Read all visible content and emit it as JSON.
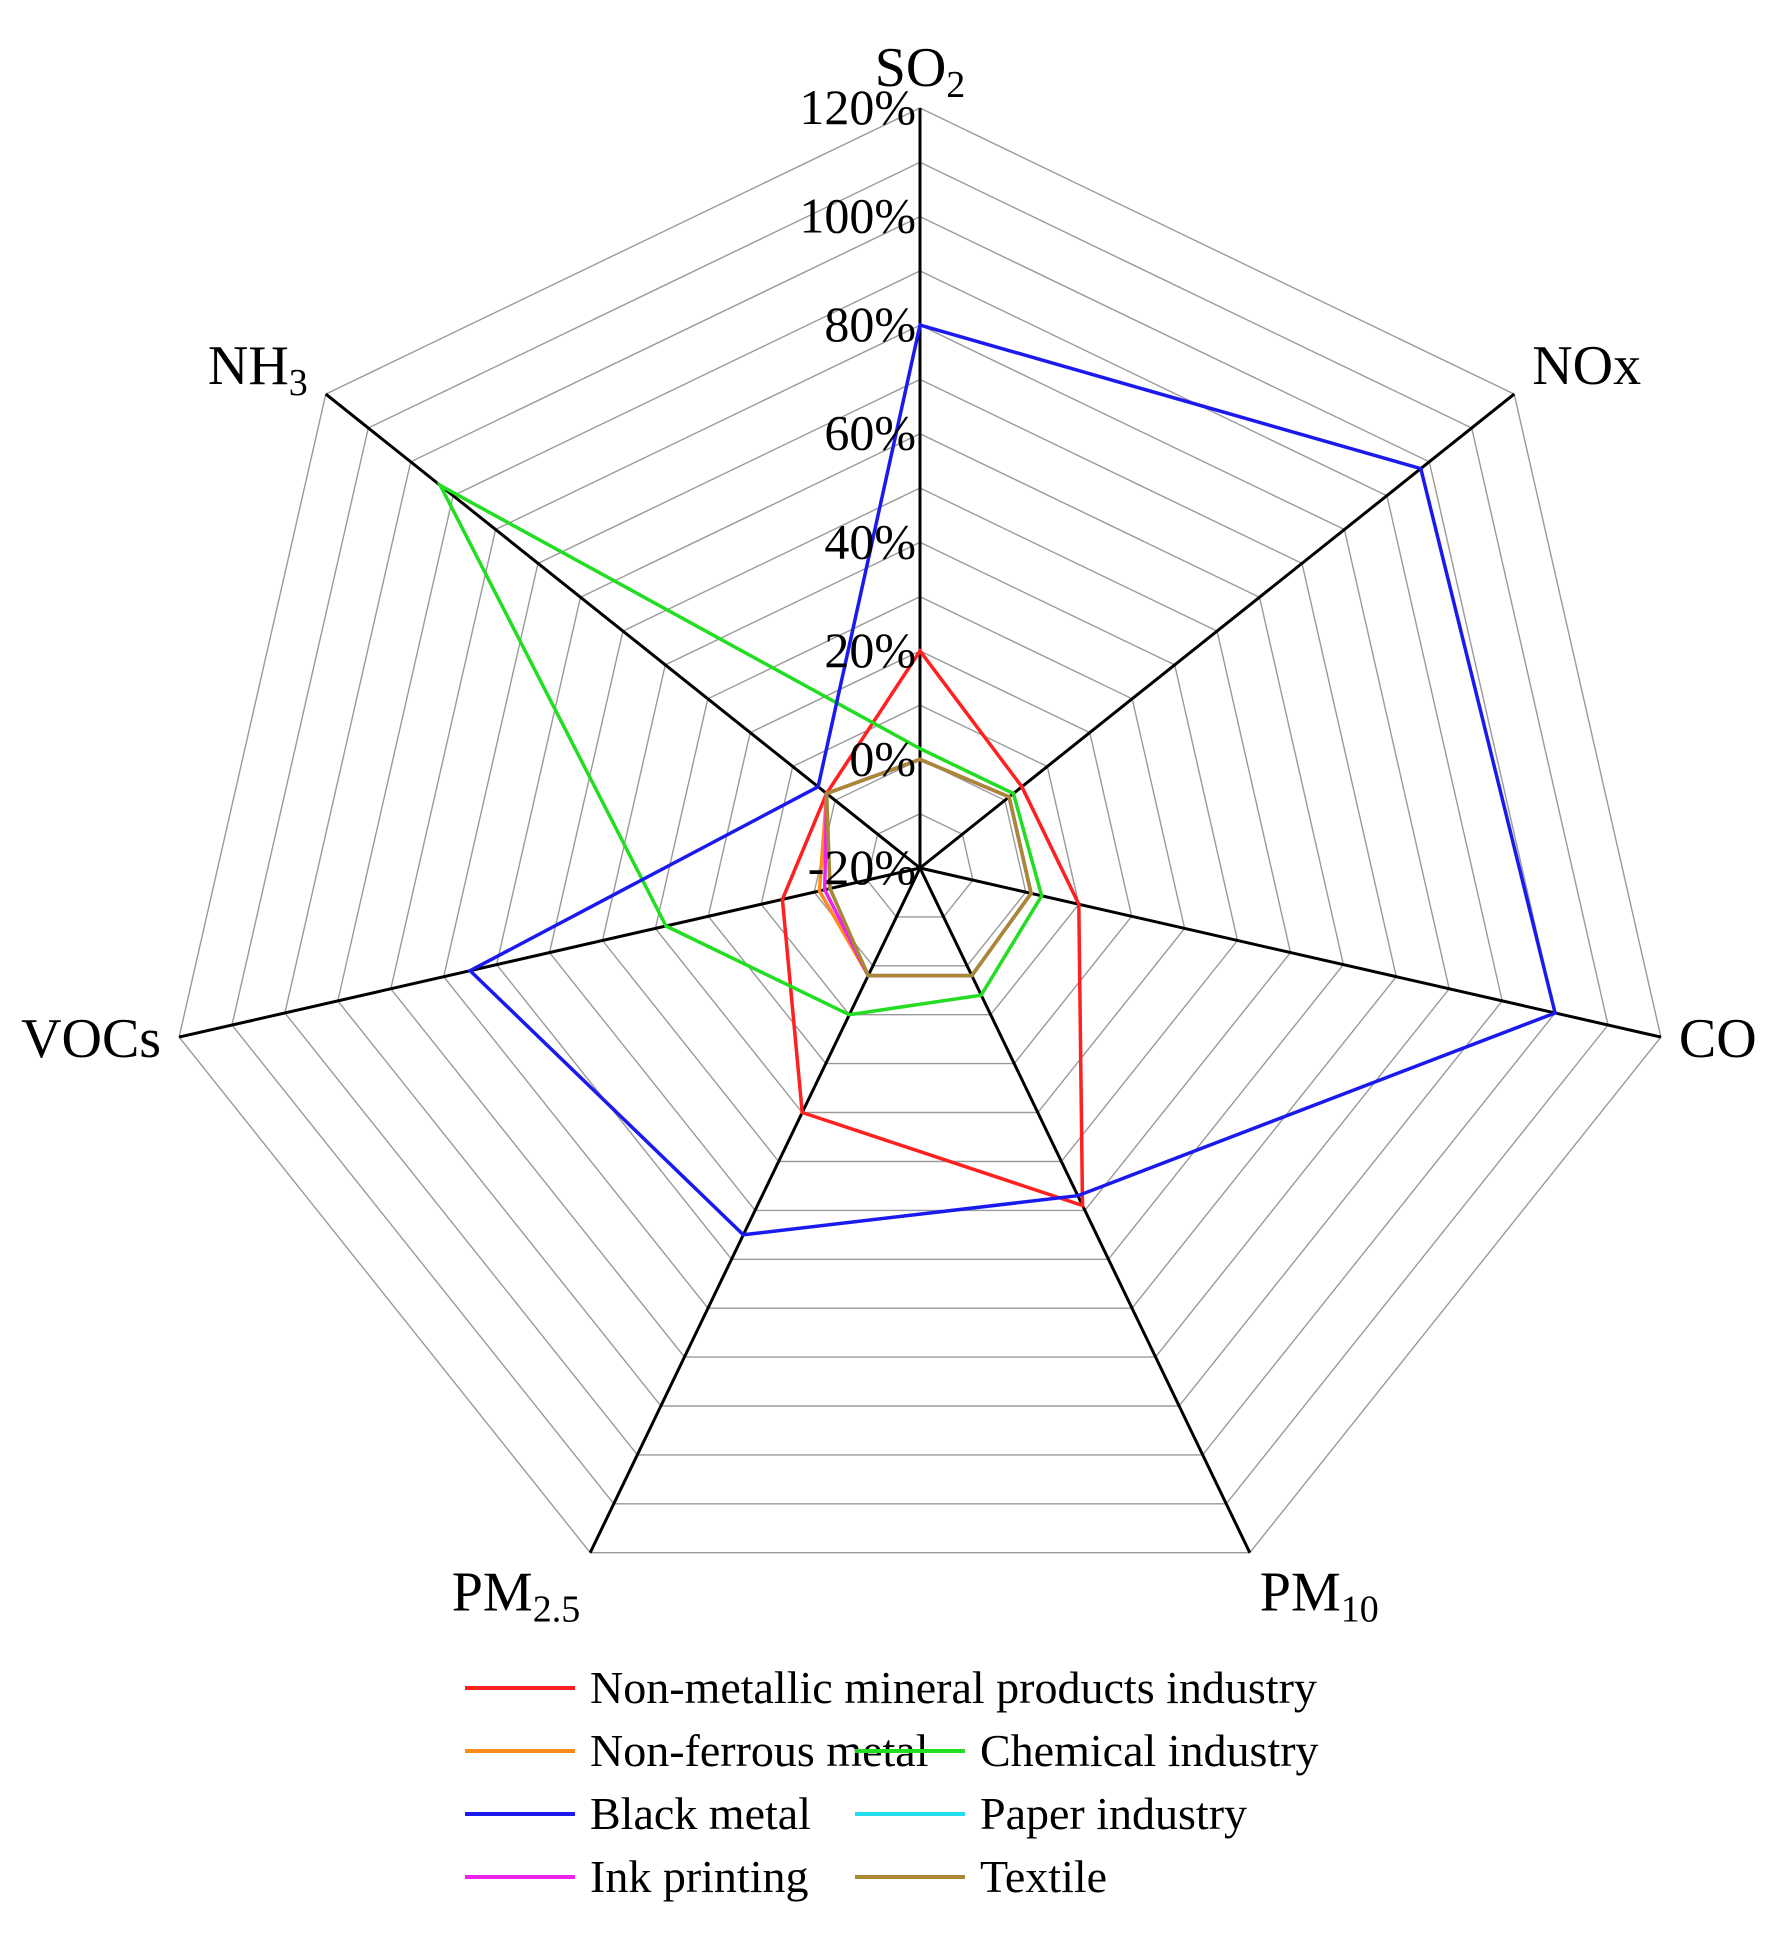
{
  "chart_data": {
    "type": "radar",
    "axes": [
      {
        "label": "SO",
        "sub": "2"
      },
      {
        "label": "NOx",
        "sub": ""
      },
      {
        "label": "CO",
        "sub": ""
      },
      {
        "label": "PM",
        "sub": "10"
      },
      {
        "label": "PM",
        "sub": "2.5"
      },
      {
        "label": "VOCs",
        "sub": ""
      },
      {
        "label": "NH",
        "sub": "3"
      }
    ],
    "range": [
      -20,
      120
    ],
    "tick_values": [
      -20,
      0,
      20,
      40,
      60,
      80,
      100,
      120
    ],
    "tick_labels": [
      "-20%",
      "0%",
      "20%",
      "40%",
      "60%",
      "80%",
      "100%",
      "120%"
    ],
    "series": [
      {
        "name": "Non-metallic mineral products industry",
        "color": "#ff2020",
        "values": [
          20,
          4,
          10,
          49,
          30,
          6,
          2
        ]
      },
      {
        "name": "Non-ferrous metal",
        "color": "#ff8c1a",
        "values": [
          0,
          1,
          1,
          2,
          2,
          -1,
          2
        ]
      },
      {
        "name": "Chemical industry",
        "color": "#22dd22",
        "values": [
          2,
          2,
          3,
          6,
          10,
          28,
          93
        ]
      },
      {
        "name": "Black metal",
        "color": "#1a1aee",
        "values": [
          80,
          98,
          100,
          47,
          55,
          65,
          4
        ]
      },
      {
        "name": "Paper industry",
        "color": "#22ddee",
        "values": [
          0,
          1,
          1,
          2,
          2,
          -3,
          2
        ]
      },
      {
        "name": "Ink printing",
        "color": "#ee22ee",
        "values": [
          0,
          1,
          1,
          2,
          2,
          -2,
          2
        ]
      },
      {
        "name": "Textile",
        "color": "#aa8833",
        "values": [
          0,
          1,
          1,
          2,
          2,
          -3,
          2
        ]
      }
    ],
    "legend_position": "bottom",
    "grid": true
  }
}
